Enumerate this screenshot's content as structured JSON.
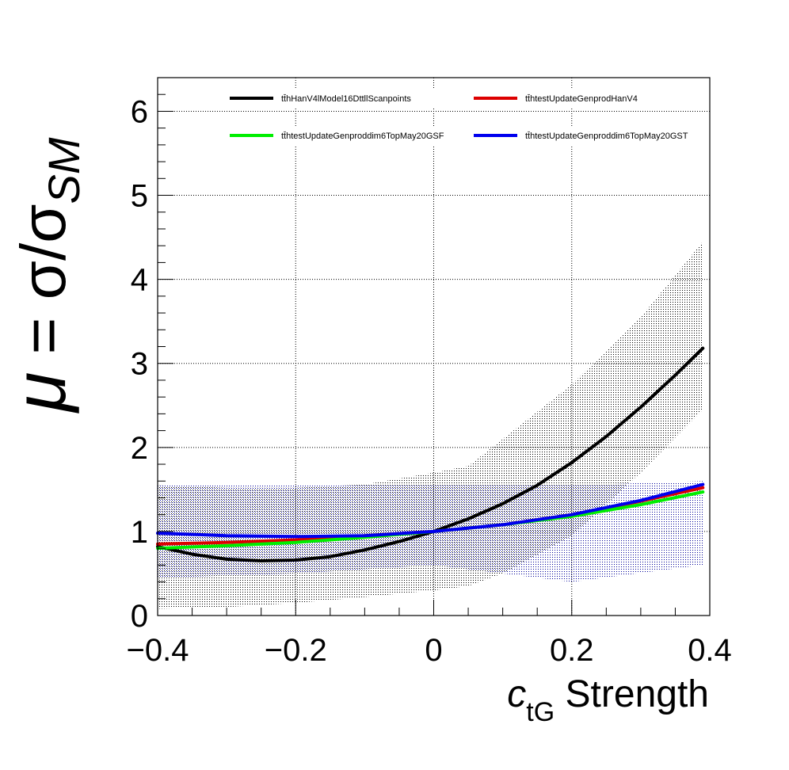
{
  "chart_data": {
    "type": "line",
    "xlabel_main": "c",
    "xlabel_sub": "tG",
    "xlabel_rest": " Strength",
    "ylabel_mu": "μ",
    "ylabel_eq": " = σ/σ",
    "ylabel_sub": "SM",
    "xlim": [
      -0.4,
      0.4
    ],
    "ylim": [
      0,
      6.4
    ],
    "grid": true,
    "legend_position": "top",
    "x_ticks": [
      {
        "value": -0.4,
        "label": "−0.4"
      },
      {
        "value": -0.2,
        "label": "−0.2"
      },
      {
        "value": 0,
        "label": "0"
      },
      {
        "value": 0.2,
        "label": "0.2"
      },
      {
        "value": 0.4,
        "label": "0.4"
      }
    ],
    "y_ticks": [
      {
        "value": 0,
        "label": "0"
      },
      {
        "value": 1,
        "label": "1"
      },
      {
        "value": 2,
        "label": "2"
      },
      {
        "value": 3,
        "label": "3"
      },
      {
        "value": 4,
        "label": "4"
      },
      {
        "value": 5,
        "label": "5"
      },
      {
        "value": 6,
        "label": "6"
      }
    ],
    "bands": [
      {
        "color": "#000000",
        "x": [
          -0.4,
          -0.3,
          -0.2,
          -0.1,
          0,
          0.05,
          0.1,
          0.2,
          0.3,
          0.39
        ],
        "lower": [
          0.08,
          0.1,
          0.15,
          0.22,
          0.3,
          0.35,
          0.5,
          0.95,
          1.7,
          2.45
        ],
        "upper": [
          1.55,
          1.52,
          1.52,
          1.56,
          1.7,
          1.78,
          2.1,
          2.75,
          3.55,
          4.45
        ]
      },
      {
        "color": "#000099",
        "x": [
          -0.4,
          -0.2,
          0,
          0.2,
          0.39
        ],
        "lower": [
          0.45,
          0.5,
          0.6,
          0.4,
          0.6
        ],
        "upper": [
          1.55,
          1.55,
          1.55,
          1.55,
          1.6
        ]
      }
    ],
    "series": [
      {
        "name": "tt̄hHanV4lModel16DttllScanpoints",
        "color": "#000000",
        "x": [
          -0.4,
          -0.35,
          -0.3,
          -0.25,
          -0.2,
          -0.15,
          -0.1,
          -0.05,
          0,
          0.05,
          0.1,
          0.15,
          0.2,
          0.25,
          0.3,
          0.35,
          0.39
        ],
        "y": [
          0.82,
          0.73,
          0.67,
          0.65,
          0.66,
          0.7,
          0.78,
          0.88,
          1.0,
          1.15,
          1.33,
          1.55,
          1.82,
          2.13,
          2.48,
          2.86,
          3.18
        ]
      },
      {
        "name": "tt̄htestUpdateGenprodHanV4",
        "color": "#dd0000",
        "x": [
          -0.4,
          -0.3,
          -0.2,
          -0.1,
          0,
          0.1,
          0.2,
          0.3,
          0.39
        ],
        "y": [
          0.85,
          0.87,
          0.9,
          0.95,
          1.0,
          1.08,
          1.2,
          1.36,
          1.52
        ]
      },
      {
        "name": "tt̄htestUpdateGenproddim6TopMay20GSF",
        "color": "#00ee00",
        "x": [
          -0.4,
          -0.3,
          -0.2,
          -0.1,
          0,
          0.1,
          0.2,
          0.3,
          0.39
        ],
        "y": [
          0.8,
          0.83,
          0.87,
          0.93,
          1.0,
          1.08,
          1.18,
          1.32,
          1.47
        ]
      },
      {
        "name": "tt̄htestUpdateGenproddim6TopMay20GST",
        "color": "#0000ee",
        "x": [
          -0.4,
          -0.3,
          -0.2,
          -0.1,
          0,
          0.1,
          0.2,
          0.3,
          0.39
        ],
        "y": [
          0.98,
          0.95,
          0.94,
          0.95,
          1.0,
          1.08,
          1.2,
          1.37,
          1.56
        ]
      }
    ]
  }
}
